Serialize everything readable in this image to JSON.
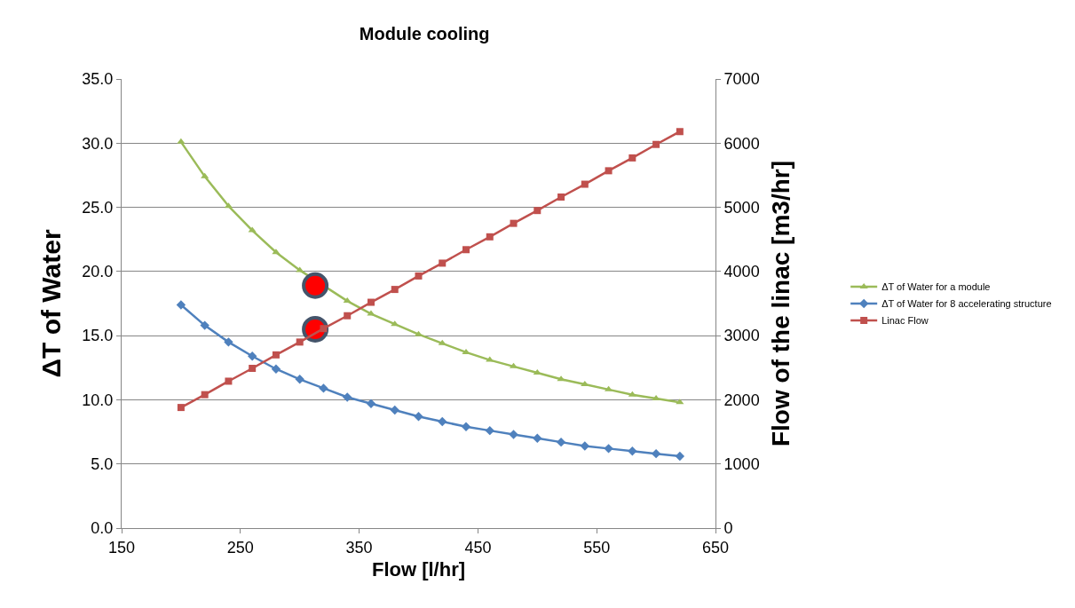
{
  "chart_data": {
    "type": "line",
    "title": "Module cooling",
    "xlabel": "Flow [l/hr]",
    "ylabel": "ΔT of Water",
    "y2label": "Flow of the linac [m3/hr]",
    "x": [
      200,
      220,
      240,
      260,
      280,
      300,
      320,
      340,
      360,
      380,
      400,
      420,
      440,
      460,
      480,
      500,
      520,
      540,
      560,
      580,
      600,
      620
    ],
    "series": [
      {
        "name": "ΔT of Water for a module",
        "color": "#9bbb59",
        "marker": "triangle",
        "values": [
          30.1,
          27.4,
          25.1,
          23.2,
          21.5,
          20.1,
          null,
          17.7,
          16.7,
          15.9,
          15.1,
          14.4,
          13.7,
          13.1,
          12.6,
          12.1,
          11.6,
          11.2,
          10.8,
          10.4,
          10.1,
          9.8
        ]
      },
      {
        "name": "ΔT of Water for 8 accelerating structure",
        "color": "#4f81bd",
        "marker": "diamond",
        "values": [
          17.4,
          15.8,
          14.5,
          13.4,
          12.4,
          11.6,
          10.9,
          10.2,
          9.7,
          9.2,
          8.7,
          8.3,
          7.9,
          7.6,
          7.3,
          7.0,
          6.7,
          6.4,
          6.2,
          6.0,
          5.8,
          5.6
        ]
      },
      {
        "name": "Linac Flow",
        "color": "#c0504d",
        "marker": "square",
        "axis": "y2",
        "values": [
          1880,
          2080,
          2290,
          2490,
          2700,
          2900,
          3110,
          3310,
          3520,
          3720,
          3930,
          4130,
          4340,
          4540,
          4750,
          4950,
          5160,
          5360,
          5570,
          5770,
          5980,
          6180
        ]
      },
      {
        "type": "scatter",
        "color": "#ff0000",
        "marker": "circle",
        "x": [
          313,
          313
        ],
        "values": [
          18.9,
          15.5
        ]
      }
    ],
    "xlim": [
      150,
      650
    ],
    "xticks": [
      150,
      250,
      350,
      450,
      550,
      650
    ],
    "ylim": [
      0,
      35
    ],
    "yticks": [
      {
        "value": 0,
        "label": "0.0"
      },
      {
        "value": 5,
        "label": "5.0"
      },
      {
        "value": 10,
        "label": "10.0"
      },
      {
        "value": 15,
        "label": "15.0"
      },
      {
        "value": 20,
        "label": "20.0"
      },
      {
        "value": 25,
        "label": "25.0"
      },
      {
        "value": 30,
        "label": "30.0"
      },
      {
        "value": 35,
        "label": "35.0"
      }
    ],
    "y2lim": [
      0,
      7000
    ],
    "y2ticks": [
      0,
      1000,
      2000,
      3000,
      4000,
      5000,
      6000,
      7000
    ],
    "grid": "y",
    "legend": "right",
    "line_style": "solid"
  }
}
